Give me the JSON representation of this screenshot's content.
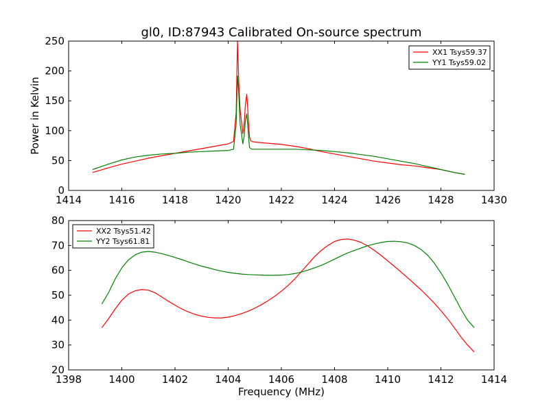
{
  "chart_data": [
    {
      "type": "line",
      "title": "gl0, ID:87943 Calibrated On-source spectrum",
      "xlabel": "",
      "ylabel": "Power in Kelvin",
      "xlim": [
        1414,
        1430
      ],
      "ylim": [
        0,
        250
      ],
      "xticks": [
        1414,
        1416,
        1418,
        1420,
        1422,
        1424,
        1426,
        1428,
        1430
      ],
      "yticks": [
        0,
        50,
        100,
        150,
        200,
        250
      ],
      "legend_position": "top-right",
      "grid": false,
      "series": [
        {
          "name": "XX1 Tsys59.37",
          "color": "#ff0000",
          "x": [
            1414.9,
            1415.5,
            1416.0,
            1416.5,
            1417.0,
            1417.5,
            1418.0,
            1418.5,
            1419.0,
            1419.5,
            1420.0,
            1420.2,
            1420.3,
            1420.35,
            1420.4,
            1420.45,
            1420.5,
            1420.55,
            1420.6,
            1420.65,
            1420.7,
            1420.75,
            1420.8,
            1420.85,
            1420.9,
            1421.0,
            1421.5,
            1422.0,
            1422.5,
            1423.0,
            1423.5,
            1424.0,
            1424.5,
            1425.0,
            1425.5,
            1426.0,
            1426.5,
            1427.0,
            1427.5,
            1428.0,
            1428.5,
            1428.9
          ],
          "y": [
            30,
            38,
            44,
            49,
            54,
            58,
            62,
            66,
            70,
            74,
            78,
            82,
            130,
            250,
            180,
            135,
            115,
            95,
            110,
            145,
            161,
            125,
            90,
            83,
            82,
            81,
            79,
            77,
            74,
            70,
            65,
            61,
            57,
            53,
            49,
            46,
            43,
            41,
            38,
            35,
            30,
            27
          ]
        },
        {
          "name": "YY1 Tsys59.02",
          "color": "#008000",
          "x": [
            1414.9,
            1415.5,
            1416.0,
            1416.5,
            1417.0,
            1417.5,
            1418.0,
            1418.5,
            1419.0,
            1419.5,
            1420.0,
            1420.2,
            1420.3,
            1420.35,
            1420.4,
            1420.45,
            1420.5,
            1420.55,
            1420.6,
            1420.65,
            1420.7,
            1420.75,
            1420.8,
            1420.85,
            1420.9,
            1421.0,
            1421.5,
            1422.0,
            1422.5,
            1423.0,
            1423.5,
            1424.0,
            1424.5,
            1425.0,
            1425.5,
            1426.0,
            1426.5,
            1427.0,
            1427.5,
            1428.0,
            1428.5,
            1428.9
          ],
          "y": [
            35,
            44,
            51,
            56,
            59,
            61,
            62,
            64,
            65,
            66,
            67,
            69,
            110,
            192,
            160,
            110,
            95,
            78,
            90,
            118,
            128,
            100,
            72,
            70,
            69,
            69,
            69,
            69,
            69,
            68,
            67,
            65,
            63,
            60,
            57,
            53,
            49,
            45,
            40,
            35,
            30,
            27
          ]
        }
      ]
    },
    {
      "type": "line",
      "title": "",
      "xlabel": "Frequency (MHz)",
      "ylabel": "",
      "xlim": [
        1398,
        1414
      ],
      "ylim": [
        20,
        80
      ],
      "xticks": [
        1398,
        1400,
        1402,
        1404,
        1406,
        1408,
        1410,
        1412,
        1414
      ],
      "yticks": [
        20,
        30,
        40,
        50,
        60,
        70,
        80
      ],
      "legend_position": "top-left",
      "grid": false,
      "series": [
        {
          "name": "XX2 Tsys51.42",
          "color": "#ff0000",
          "x": [
            1399.25,
            1399.5,
            1399.75,
            1400.0,
            1400.25,
            1400.5,
            1400.75,
            1401.0,
            1401.25,
            1401.5,
            1401.75,
            1402.0,
            1402.25,
            1402.5,
            1402.75,
            1403.0,
            1403.25,
            1403.5,
            1403.75,
            1404.0,
            1404.25,
            1404.5,
            1404.75,
            1405.0,
            1405.25,
            1405.5,
            1405.75,
            1406.0,
            1406.25,
            1406.5,
            1406.75,
            1407.0,
            1407.25,
            1407.5,
            1407.75,
            1408.0,
            1408.25,
            1408.5,
            1408.75,
            1409.0,
            1409.25,
            1409.5,
            1409.75,
            1410.0,
            1410.25,
            1410.5,
            1410.75,
            1411.0,
            1411.25,
            1411.5,
            1411.75,
            1412.0,
            1412.25,
            1412.5,
            1412.75,
            1413.0,
            1413.25
          ],
          "y": [
            37.0,
            40.5,
            44.5,
            48.0,
            50.5,
            51.8,
            52.3,
            52.0,
            51.0,
            49.3,
            47.6,
            46.0,
            44.5,
            43.3,
            42.3,
            41.6,
            41.1,
            40.9,
            40.9,
            41.2,
            41.8,
            42.6,
            43.6,
            44.8,
            46.2,
            47.8,
            49.6,
            51.6,
            53.9,
            56.5,
            59.5,
            62.5,
            65.5,
            68.0,
            70.0,
            71.6,
            72.4,
            72.6,
            72.1,
            71.2,
            69.8,
            68.0,
            66.0,
            63.8,
            61.6,
            59.3,
            57.0,
            54.6,
            52.2,
            49.6,
            46.8,
            43.8,
            40.6,
            37.0,
            33.3,
            30.0,
            27.2
          ]
        },
        {
          "name": "YY2 Tsys61.81",
          "color": "#008000",
          "x": [
            1399.25,
            1399.5,
            1399.75,
            1400.0,
            1400.25,
            1400.5,
            1400.75,
            1401.0,
            1401.25,
            1401.5,
            1401.75,
            1402.0,
            1402.25,
            1402.5,
            1402.75,
            1403.0,
            1403.25,
            1403.5,
            1403.75,
            1404.0,
            1404.25,
            1404.5,
            1404.75,
            1405.0,
            1405.25,
            1405.5,
            1405.75,
            1406.0,
            1406.25,
            1406.5,
            1406.75,
            1407.0,
            1407.25,
            1407.5,
            1407.75,
            1408.0,
            1408.25,
            1408.5,
            1408.75,
            1409.0,
            1409.25,
            1409.5,
            1409.75,
            1410.0,
            1410.25,
            1410.5,
            1410.75,
            1411.0,
            1411.25,
            1411.5,
            1411.75,
            1412.0,
            1412.25,
            1412.5,
            1412.75,
            1413.0,
            1413.25
          ],
          "y": [
            46.5,
            51.0,
            56.5,
            61.0,
            64.2,
            66.2,
            67.3,
            67.6,
            67.3,
            66.7,
            66.0,
            65.2,
            64.3,
            63.4,
            62.5,
            61.7,
            61.0,
            60.3,
            59.7,
            59.2,
            58.8,
            58.5,
            58.3,
            58.2,
            58.1,
            58.0,
            58.0,
            58.1,
            58.3,
            58.7,
            59.3,
            60.1,
            61.0,
            62.0,
            63.2,
            64.5,
            65.8,
            67.0,
            68.0,
            69.0,
            69.9,
            70.6,
            71.2,
            71.6,
            71.7,
            71.5,
            71.0,
            70.0,
            68.4,
            66.1,
            62.9,
            59.0,
            54.5,
            49.5,
            44.5,
            40.0,
            37.0
          ]
        }
      ]
    }
  ]
}
